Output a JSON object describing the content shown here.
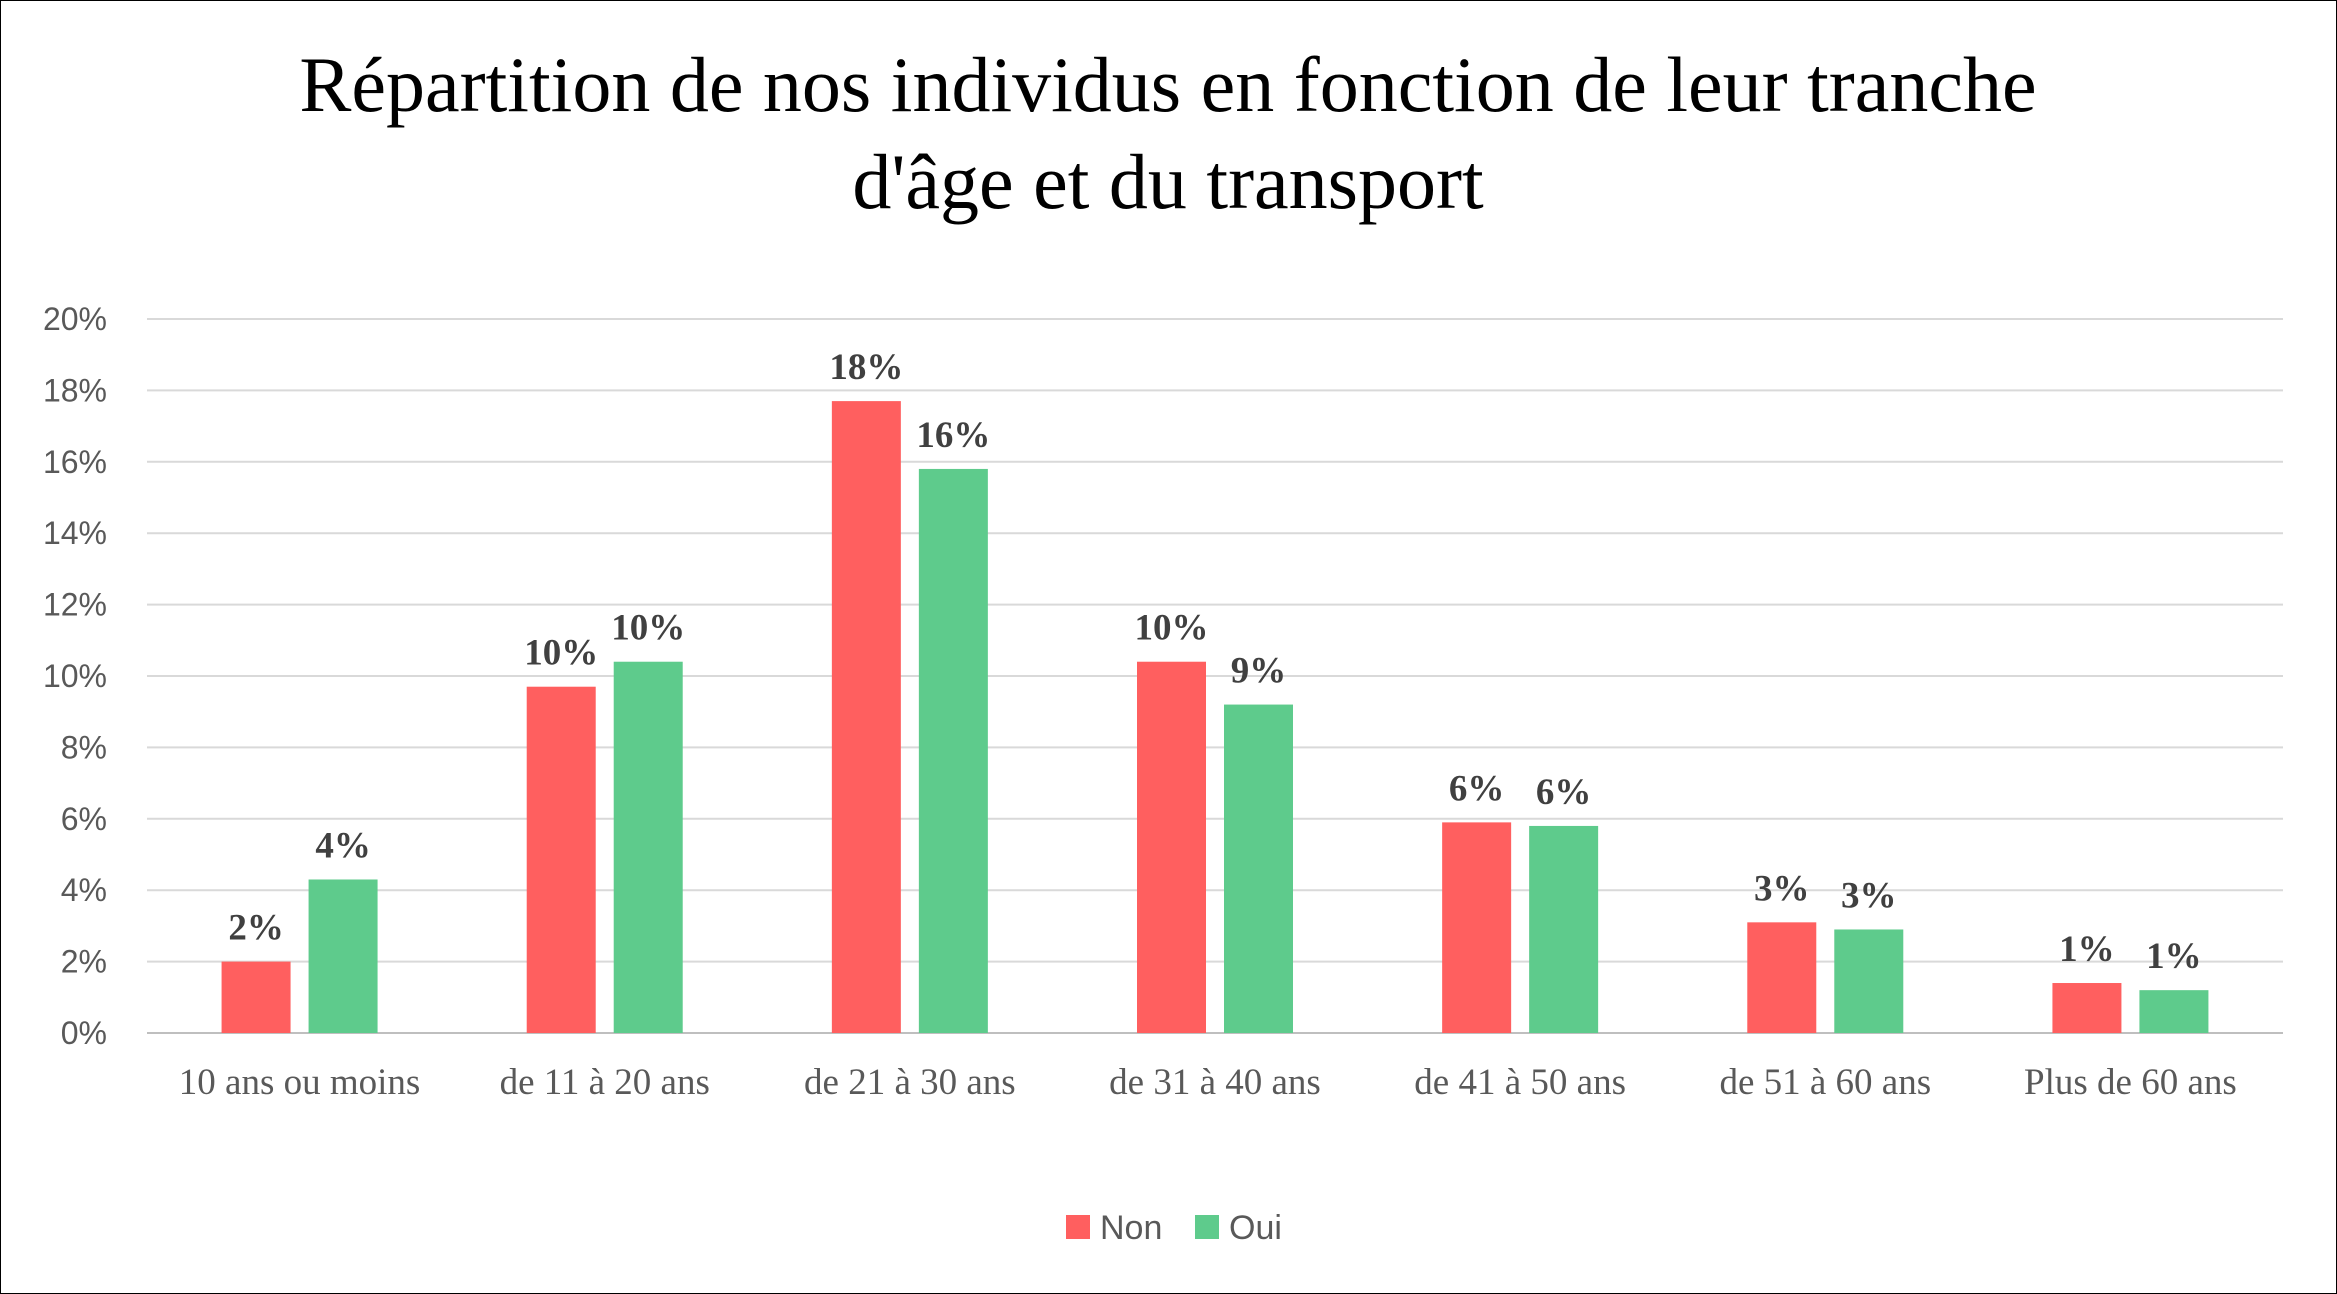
{
  "chart_data": {
    "type": "bar",
    "title_lines": [
      "Répartition de nos individus en fonction de leur tranche",
      "d'âge et du transport"
    ],
    "categories": [
      "10 ans ou moins",
      "de 11 à 20 ans",
      "de 21 à 30 ans",
      "de 31 à 40 ans",
      "de 41 à 50 ans",
      "de 51 à 60 ans",
      "Plus de 60 ans"
    ],
    "series": [
      {
        "name": "Non",
        "color": "#ff5f5f",
        "values": [
          2.0,
          9.7,
          17.7,
          10.4,
          5.9,
          3.1,
          1.4
        ],
        "labels": [
          "2%",
          "10%",
          "18%",
          "10%",
          "6%",
          "3%",
          "1%"
        ]
      },
      {
        "name": "Oui",
        "color": "#5ecb8c",
        "values": [
          4.3,
          10.4,
          15.8,
          9.2,
          5.8,
          2.9,
          1.2
        ],
        "labels": [
          "4%",
          "10%",
          "16%",
          "9%",
          "6%",
          "3%",
          "1%"
        ]
      }
    ],
    "ylim": [
      0,
      20
    ],
    "yticks": [
      "0%",
      "2%",
      "4%",
      "6%",
      "8%",
      "10%",
      "12%",
      "14%",
      "16%",
      "18%",
      "20%"
    ],
    "grid": true,
    "legend": "bottom"
  }
}
